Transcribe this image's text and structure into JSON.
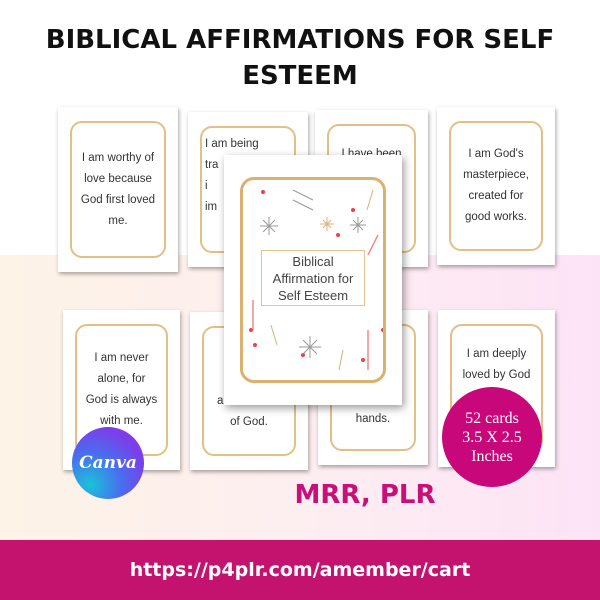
{
  "title": "BIBLICAL AFFIRMATIONS FOR  SELF\nESTEEM",
  "cards": [
    "I am worthy of\nlove because\nGod first loved\nme.",
    "I am being\ntra\ni\nim",
    "I have been\n\nof",
    "I am God's\nmasterpiece,\ncreated for\ngood works.",
    "I am never\nalone, for\nGod is always\nwith me.",
    "I a\nin\nand likeness\nof God.",
    "\n\nGod's own\nhands.",
    "I am deeply\nloved by God"
  ],
  "cover_title": "Biblical\nAffirmation for\nSelf Esteem",
  "badge": "52 cards\n3.5 X 2.5\nInches",
  "logo": "Canva",
  "license": "MRR, PLR",
  "url": "https://p4plr.com/amember/cart",
  "colors": {
    "accent": "#c4126f",
    "card_border": "#e3bf85"
  }
}
